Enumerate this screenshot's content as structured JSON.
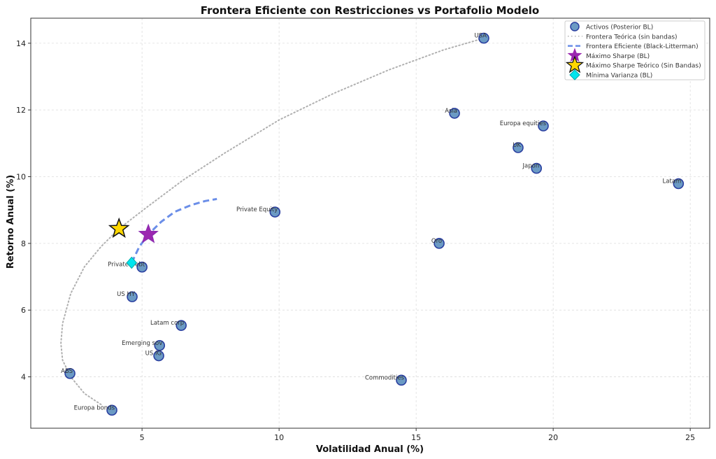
{
  "chart_data": {
    "type": "scatter",
    "title": "Frontera Eficiente con Restricciones vs Portafolio Modelo",
    "xlabel": "Volatilidad Anual (%)",
    "ylabel": "Retorno Anual (%)",
    "xlim": [
      0.94,
      25.71
    ],
    "ylim": [
      2.46,
      14.75
    ],
    "xticks": [
      5,
      10,
      15,
      20,
      25
    ],
    "yticks": [
      4,
      6,
      8,
      10,
      12,
      14
    ],
    "grid": true,
    "legend_position": "top-right",
    "colors": {
      "assets_fill": "#6b9ac4",
      "assets_edge": "#2a3fa0",
      "theoretical": "#b0b0b0",
      "bl_frontier": "#6b8ee8",
      "max_sharpe_bl": "#9b27b0",
      "max_sharpe_theo": "#ffd700",
      "min_var": "#00e5ee"
    },
    "assets": [
      {
        "name": "USA",
        "x": 17.47,
        "y": 14.15
      },
      {
        "name": "Asia",
        "x": 16.4,
        "y": 11.9
      },
      {
        "name": "Europa equities",
        "x": 19.64,
        "y": 11.52
      },
      {
        "name": "UK",
        "x": 18.72,
        "y": 10.87
      },
      {
        "name": "Japon",
        "x": 19.39,
        "y": 10.25
      },
      {
        "name": "Latam",
        "x": 24.57,
        "y": 9.79
      },
      {
        "name": "Private Equity",
        "x": 9.85,
        "y": 8.94
      },
      {
        "name": "Oro",
        "x": 15.84,
        "y": 8.0
      },
      {
        "name": "Private Debt",
        "x": 5.0,
        "y": 7.29
      },
      {
        "name": "US HY",
        "x": 4.64,
        "y": 6.4
      },
      {
        "name": "Latam corp",
        "x": 6.43,
        "y": 5.54
      },
      {
        "name": "Emerging sov",
        "x": 5.64,
        "y": 4.94
      },
      {
        "name": "US IG",
        "x": 5.61,
        "y": 4.63
      },
      {
        "name": "ABS",
        "x": 2.37,
        "y": 4.1
      },
      {
        "name": "Commodities",
        "x": 14.46,
        "y": 3.9
      },
      {
        "name": "Europa bonds",
        "x": 3.9,
        "y": 3.0
      }
    ],
    "theoretical_frontier": [
      [
        3.5,
        3.17
      ],
      [
        2.9,
        3.5
      ],
      [
        2.4,
        4.0
      ],
      [
        2.1,
        4.5
      ],
      [
        2.04,
        5.0
      ],
      [
        2.1,
        5.6
      ],
      [
        2.4,
        6.5
      ],
      [
        2.9,
        7.3
      ],
      [
        3.5,
        7.9
      ],
      [
        4.16,
        8.44
      ],
      [
        5.2,
        9.1
      ],
      [
        6.5,
        9.9
      ],
      [
        8,
        10.7
      ],
      [
        10,
        11.7
      ],
      [
        12,
        12.5
      ],
      [
        14,
        13.2
      ],
      [
        16,
        13.8
      ],
      [
        17.47,
        14.15
      ]
    ],
    "bl_frontier": [
      [
        4.62,
        7.42
      ],
      [
        4.9,
        7.9
      ],
      [
        5.23,
        8.27
      ],
      [
        5.7,
        8.65
      ],
      [
        6.2,
        8.95
      ],
      [
        6.8,
        9.15
      ],
      [
        7.3,
        9.27
      ],
      [
        7.73,
        9.33
      ]
    ],
    "max_sharpe_bl": {
      "x": 5.23,
      "y": 8.27
    },
    "max_sharpe_theoretical": {
      "x": 4.16,
      "y": 8.44
    },
    "min_variance": {
      "x": 4.62,
      "y": 7.42
    },
    "legend": [
      "Activos (Posterior BL)",
      "Frontera Teórica (sin bandas)",
      "Frontera Eficiente (Black-Litterman)",
      "Máximo Sharpe (BL)",
      "Máximo Sharpe Teórico (Sin Bandas)",
      "Mínima Varianza (BL)"
    ]
  }
}
